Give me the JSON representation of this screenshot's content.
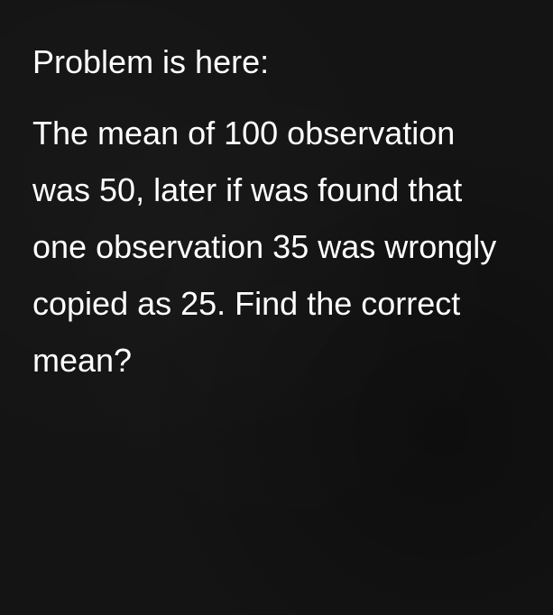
{
  "problem": {
    "heading": "Problem is here:",
    "body": "The mean of 100 observation was 50, later if was found that one observation 35 was wrongly copied as 25. Find the correct mean?",
    "text_color": "#ffffff",
    "background_color": "#141414",
    "font_size": 36,
    "line_height": 1.75
  }
}
